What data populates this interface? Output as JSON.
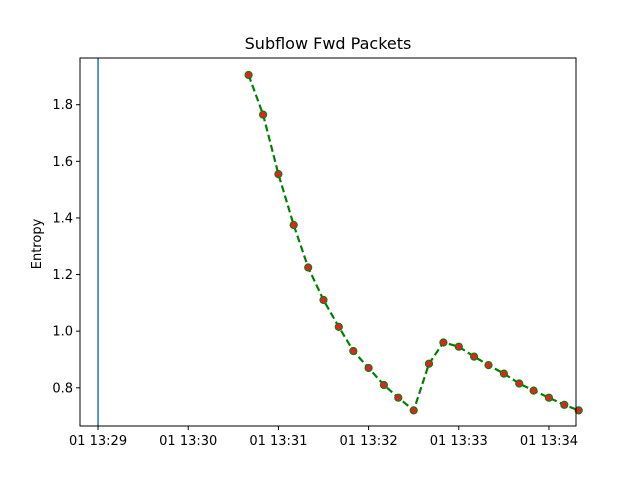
{
  "chart_data": {
    "type": "line",
    "title": "Subflow Fwd Packets",
    "xlabel": "",
    "ylabel": "Entropy",
    "x_tick_labels": [
      "01 13:29",
      "01 13:30",
      "01 13:31",
      "01 13:32",
      "01 13:33",
      "01 13:34"
    ],
    "x_tick_minutes": [
      0,
      1,
      2,
      3,
      4,
      5
    ],
    "xlim_minutes": [
      -0.2,
      5.3
    ],
    "y_ticks": [
      0.8,
      1.0,
      1.2,
      1.4,
      1.6,
      1.8
    ],
    "y_tick_labels": [
      "0.8",
      "1.0",
      "1.2",
      "1.4",
      "1.6",
      "1.8"
    ],
    "ylim": [
      0.665,
      1.965
    ],
    "grid": false,
    "vertical_line_minute": 0,
    "series": [
      {
        "line_style": "dashed",
        "line_color": "#008000",
        "marker_face_color": "#d62728",
        "marker_edge_color": "#008000",
        "x_minutes": [
          1.67,
          1.83,
          2.0,
          2.17,
          2.33,
          2.5,
          2.67,
          2.83,
          3.0,
          3.17,
          3.33,
          3.5,
          3.67,
          3.83,
          4.0,
          4.17,
          4.33,
          4.5,
          4.67,
          4.83,
          5.0,
          5.17,
          5.33
        ],
        "y": [
          1.905,
          1.765,
          1.555,
          1.375,
          1.225,
          1.11,
          1.015,
          0.93,
          0.87,
          0.81,
          0.765,
          0.72,
          0.885,
          0.96,
          0.945,
          0.91,
          0.88,
          0.85,
          0.815,
          0.79,
          0.765,
          0.74,
          0.72
        ]
      }
    ]
  }
}
